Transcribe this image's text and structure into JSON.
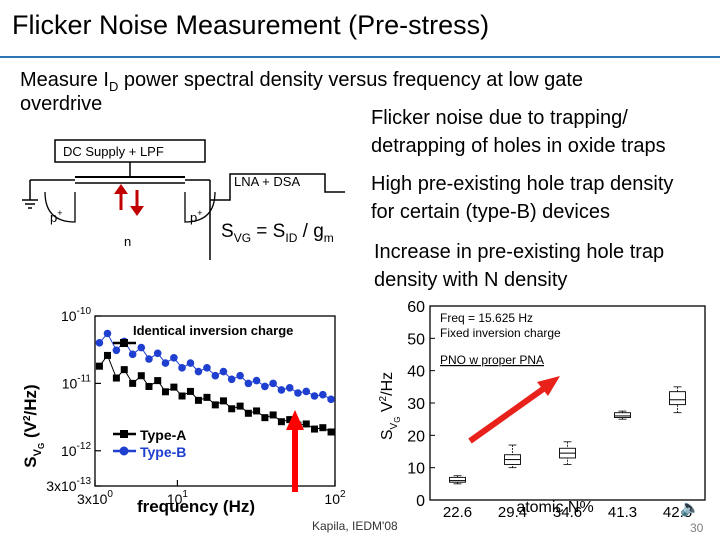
{
  "slide": {
    "title": "Flicker Noise Measurement (Pre-stress)",
    "bullet1_a": "Measure I",
    "bullet1_sub": "D",
    "bullet1_b": " power spectral density versus frequency at low gate",
    "bullet1_c": "overdrive",
    "right_text_1a": "Flicker noise due to trapping/",
    "right_text_1b": "detrapping of holes in oxide traps",
    "right_text_2a": "High pre-existing hole trap density",
    "right_text_2b": "for certain (type-B) devices",
    "right_text_3a": "Increase in pre-existing hole trap",
    "right_text_3b": "density with N density",
    "citation": "Kapila, IEDM'08",
    "page_number": "30"
  },
  "schematic": {
    "dc_supply_label": "DC Supply + LPF",
    "lna_label": "LNA + DSA",
    "p_left": "p",
    "p_right": "p",
    "plus": "+",
    "n_label": "n",
    "formula_svg": "S",
    "formula_vg": "VG",
    "formula_eq": " = S",
    "formula_id": "ID",
    "formula_div": " / g",
    "formula_m": "m"
  },
  "chart_data": [
    {
      "type": "scatter",
      "annotation": "Identical inversion charge",
      "xlabel": "frequency (Hz)",
      "ylabel": "S",
      "ylabel_sub": "V",
      "ylabel_sub2": "G",
      "ylabel_units": "(V",
      "ylabel_units_sup": "2",
      "ylabel_units_b": "/Hz)",
      "x_scale": "log",
      "y_scale": "log",
      "xlim": [
        3,
        100
      ],
      "ylim": [
        3e-13,
        1e-10
      ],
      "x_ticks": [
        {
          "value": 3,
          "base": "3x10",
          "exp": "0"
        },
        {
          "value": 10,
          "base": "10",
          "exp": "1"
        },
        {
          "value": 100,
          "base": "10",
          "exp": "2"
        }
      ],
      "y_ticks": [
        {
          "value": 1e-10,
          "base": "10",
          "exp": "-10"
        },
        {
          "value": 1e-11,
          "base": "10",
          "exp": "-11"
        },
        {
          "value": 1e-12,
          "base": "10",
          "exp": "-12"
        },
        {
          "value": 3e-13,
          "base": "3x10",
          "exp": "-13"
        }
      ],
      "legend_position": "bottom-left",
      "series": [
        {
          "name": "Type-A",
          "color": "#000000",
          "marker": "square",
          "x": [
            3.2,
            3.6,
            4.1,
            4.6,
            5.2,
            5.9,
            6.6,
            7.5,
            8.4,
            9.5,
            10.7,
            12.1,
            13.6,
            15.4,
            17.4,
            19.6,
            22.1,
            25.0,
            28.2,
            31.8,
            35.9,
            40.5,
            45.7,
            51.6,
            58.2,
            65.7,
            74.1,
            83.7,
            94.4
          ],
          "y": [
            1.8e-11,
            2.6e-11,
            1.2e-11,
            1.6e-11,
            1e-11,
            1.3e-11,
            9e-12,
            1.1e-11,
            7.5e-12,
            8.8e-12,
            6.5e-12,
            7.6e-12,
            5.6e-12,
            6.2e-12,
            4.8e-12,
            5.5e-12,
            4.2e-12,
            4.6e-12,
            3.6e-12,
            3.9e-12,
            3.1e-12,
            3.4e-12,
            2.7e-12,
            2.9e-12,
            2.4e-12,
            2.5e-12,
            2.1e-12,
            2.2e-12,
            1.9e-12
          ]
        },
        {
          "name": "Type-B",
          "color": "#1f3fd0",
          "marker": "circle",
          "x": [
            3.2,
            3.6,
            4.1,
            4.6,
            5.2,
            5.9,
            6.6,
            7.5,
            8.4,
            9.5,
            10.7,
            12.1,
            13.6,
            15.4,
            17.4,
            19.6,
            22.1,
            25.0,
            28.2,
            31.8,
            35.9,
            40.5,
            45.7,
            51.6,
            58.2,
            65.7,
            74.1,
            83.7,
            94.4
          ],
          "y": [
            4e-11,
            5.5e-11,
            3.1e-11,
            4.2e-11,
            2.7e-11,
            3.4e-11,
            2.3e-11,
            2.8e-11,
            2e-11,
            2.4e-11,
            1.7e-11,
            2e-11,
            1.5e-11,
            1.7e-11,
            1.3e-11,
            1.5e-11,
            1.15e-11,
            1.3e-11,
            1e-11,
            1.1e-11,
            9e-12,
            1e-11,
            8e-12,
            8.6e-12,
            7.2e-12,
            7.6e-12,
            6.5e-12,
            6.8e-12,
            5.8e-12
          ]
        }
      ]
    },
    {
      "type": "box",
      "annotation_1": "Freq = 15.625 Hz",
      "annotation_2": "Fixed inversion charge",
      "annotation_3": "PNO w proper PNA",
      "xlabel": "atomic N%",
      "ylabel": "S",
      "ylabel_sub": "V",
      "ylabel_sub2": "G",
      "ylabel_units": "V",
      "ylabel_units_sup": "2",
      "ylabel_units_b": "/Hz",
      "categories": [
        "22.6",
        "29.4",
        "34.6",
        "41.3",
        "42.5"
      ],
      "ylim": [
        0,
        60
      ],
      "y_ticks": [
        0,
        10,
        20,
        30,
        40,
        50,
        60
      ],
      "boxes": [
        {
          "category": "22.6",
          "min": 5,
          "q1": 5.5,
          "median": 6,
          "q3": 7,
          "max": 7.5
        },
        {
          "category": "29.4",
          "min": 10,
          "q1": 11,
          "median": 12.5,
          "q3": 14,
          "max": 17
        },
        {
          "category": "34.6",
          "min": 11,
          "q1": 13,
          "median": 14.5,
          "q3": 16,
          "max": 18
        },
        {
          "category": "41.3",
          "min": 25,
          "q1": 25.5,
          "median": 26,
          "q3": 27,
          "max": 27.5
        },
        {
          "category": "42.5",
          "min": 27,
          "q1": 29.5,
          "median": 31,
          "q3": 33.5,
          "max": 35
        }
      ]
    }
  ]
}
